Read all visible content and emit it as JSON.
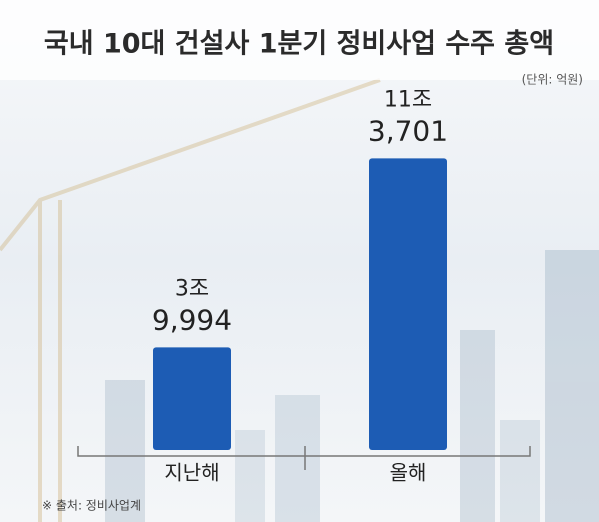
{
  "chart_data": {
    "type": "bar",
    "title": "국내 10대 건설사 1분기 정비사업 수주 총액",
    "subtitle": "(단위: 억원)",
    "source": "※ 출처: 정비사업계",
    "categories": [
      "지난해",
      "올해"
    ],
    "values": [
      39994,
      113701
    ],
    "value_labels": [
      [
        "3조",
        "9,994"
      ],
      [
        "11조",
        "3,701"
      ]
    ],
    "color": "#1d5cb4",
    "ylim": [
      0,
      115000
    ]
  }
}
